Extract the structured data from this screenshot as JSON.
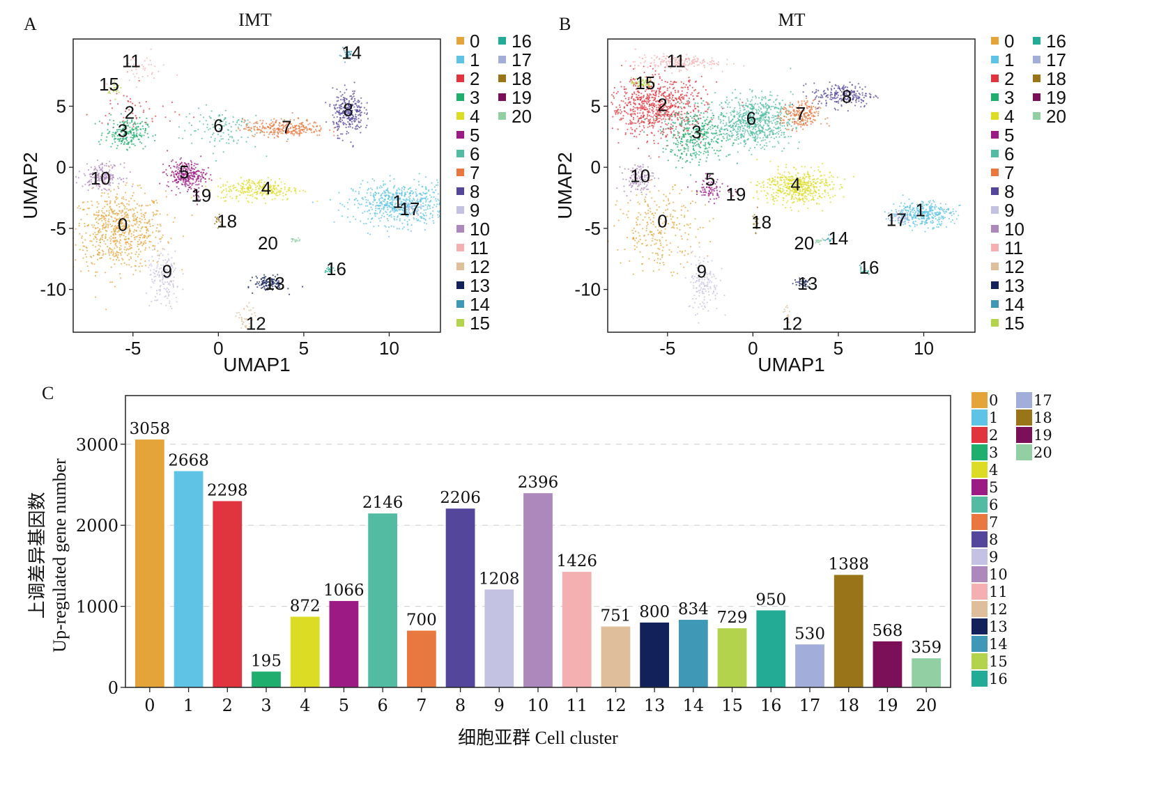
{
  "panels": {
    "a": {
      "letter": "A",
      "title": "IMT"
    },
    "b": {
      "letter": "B",
      "title": "MT"
    },
    "c": {
      "letter": "C"
    }
  },
  "cluster_colors": {
    "0": "#e4a43a",
    "1": "#5ec3e4",
    "2": "#e0343e",
    "3": "#1fae6e",
    "4": "#dcdc24",
    "5": "#9b1a84",
    "6": "#52bba1",
    "7": "#e8783f",
    "8": "#54469a",
    "9": "#c4c2e2",
    "10": "#ad88bd",
    "11": "#f4afb0",
    "12": "#dfbe9c",
    "13": "#13215a",
    "14": "#3f98b5",
    "15": "#b4d34c",
    "16": "#24ab96",
    "17": "#a2add9",
    "18": "#9a7419",
    "19": "#7b1058",
    "20": "#92cfa3"
  },
  "chart_data": [
    {
      "type": "scatter",
      "panel": "A",
      "title": "IMT",
      "xlabel": "UMAP1",
      "ylabel": "UMAP2",
      "xlim": [
        -8.5,
        13
      ],
      "ylim": [
        -13.5,
        10.5
      ],
      "xticks": [
        -5,
        0,
        5,
        10
      ],
      "yticks": [
        5,
        0,
        -5,
        -10
      ],
      "legend": {
        "placement": "right",
        "columns": 2,
        "entries": [
          "0",
          "1",
          "2",
          "3",
          "4",
          "5",
          "6",
          "7",
          "8",
          "9",
          "10",
          "11",
          "12",
          "13",
          "14",
          "15",
          "16",
          "17",
          "18",
          "19",
          "20"
        ]
      },
      "clusters": [
        {
          "id": "0",
          "label_at": [
            -5.6,
            -4.7
          ],
          "cx": -5.8,
          "cy": -5.2,
          "sx": 1.35,
          "sy": 1.6,
          "n": 700
        },
        {
          "id": "1",
          "label_at": [
            10.5,
            -2.8
          ],
          "cx": 10.6,
          "cy": -3.0,
          "sx": 1.35,
          "sy": 0.85,
          "n": 620
        },
        {
          "id": "2",
          "label_at": [
            -5.2,
            4.5
          ],
          "cx": -5.0,
          "cy": 4.5,
          "sx": 1.2,
          "sy": 1.0,
          "n": 50
        },
        {
          "id": "3",
          "label_at": [
            -5.6,
            3.0
          ],
          "cx": -5.4,
          "cy": 2.8,
          "sx": 0.6,
          "sy": 0.6,
          "n": 220
        },
        {
          "id": "4",
          "label_at": [
            2.8,
            -1.7
          ],
          "cx": 2.4,
          "cy": -1.8,
          "sx": 1.2,
          "sy": 0.45,
          "n": 260
        },
        {
          "id": "5",
          "label_at": [
            -2.0,
            -0.4
          ],
          "cx": -1.9,
          "cy": -0.6,
          "sx": 0.55,
          "sy": 0.55,
          "n": 280
        },
        {
          "id": "6",
          "label_at": [
            0,
            3.4
          ],
          "cx": 0.1,
          "cy": 3.2,
          "sx": 1.2,
          "sy": 0.9,
          "n": 120
        },
        {
          "id": "7",
          "label_at": [
            4.0,
            3.3
          ],
          "cx": 3.9,
          "cy": 3.2,
          "sx": 1.2,
          "sy": 0.35,
          "n": 280
        },
        {
          "id": "8",
          "label_at": [
            7.6,
            4.7
          ],
          "cx": 7.6,
          "cy": 4.5,
          "sx": 0.45,
          "sy": 0.9,
          "n": 280
        },
        {
          "id": "9",
          "label_at": [
            -3.0,
            -8.5
          ],
          "cx": -3.2,
          "cy": -9.2,
          "sx": 0.5,
          "sy": 1.2,
          "n": 160
        },
        {
          "id": "10",
          "label_at": [
            -6.9,
            -0.9
          ],
          "cx": -6.8,
          "cy": -0.7,
          "sx": 0.55,
          "sy": 0.5,
          "n": 180
        },
        {
          "id": "11",
          "label_at": [
            -5.1,
            8.7
          ],
          "cx": -4.6,
          "cy": 8.0,
          "sx": 0.8,
          "sy": 0.6,
          "n": 40
        },
        {
          "id": "12",
          "label_at": [
            2.2,
            -12.8
          ],
          "cx": 1.6,
          "cy": -12.5,
          "sx": 0.25,
          "sy": 0.7,
          "n": 40
        },
        {
          "id": "13",
          "label_at": [
            3.3,
            -9.5
          ],
          "cx": 3.0,
          "cy": -9.5,
          "sx": 0.45,
          "sy": 0.3,
          "n": 120
        },
        {
          "id": "14",
          "label_at": [
            7.8,
            9.4
          ],
          "cx": 7.5,
          "cy": 9.3,
          "sx": 0.2,
          "sy": 0.25,
          "n": 30
        },
        {
          "id": "15",
          "label_at": [
            -6.4,
            6.8
          ],
          "cx": -6.1,
          "cy": 6.3,
          "sx": 0.2,
          "sy": 0.3,
          "n": 20
        },
        {
          "id": "16",
          "label_at": [
            6.9,
            -8.3
          ],
          "cx": 6.5,
          "cy": -8.4,
          "sx": 0.12,
          "sy": 0.2,
          "n": 20
        },
        {
          "id": "17",
          "label_at": [
            11.2,
            -3.4
          ],
          "cx": 11.3,
          "cy": -3.4,
          "sx": 0.3,
          "sy": 0.3,
          "n": 30
        },
        {
          "id": "18",
          "label_at": [
            0.5,
            -4.4
          ],
          "cx": 0.0,
          "cy": -4.5,
          "sx": 0.15,
          "sy": 0.5,
          "n": 15
        },
        {
          "id": "19",
          "label_at": [
            -1.0,
            -2.3
          ],
          "cx": -1.4,
          "cy": -2.2,
          "sx": 0.15,
          "sy": 0.4,
          "n": 15
        },
        {
          "id": "20",
          "label_at": [
            2.9,
            -6.2
          ],
          "cx": 4.5,
          "cy": -6.0,
          "sx": 0.15,
          "sy": 0.12,
          "n": 15
        }
      ]
    },
    {
      "type": "scatter",
      "panel": "B",
      "title": "MT",
      "xlabel": "UMAP1",
      "ylabel": "UMAP2",
      "xlim": [
        -8.5,
        13
      ],
      "ylim": [
        -13.5,
        10.5
      ],
      "xticks": [
        -5,
        0,
        5,
        10
      ],
      "yticks": [
        5,
        0,
        -5,
        -10
      ],
      "legend": {
        "placement": "right",
        "columns": 2,
        "entries": [
          "0",
          "1",
          "2",
          "3",
          "4",
          "5",
          "6",
          "7",
          "8",
          "9",
          "10",
          "11",
          "12",
          "13",
          "14",
          "15",
          "16",
          "17",
          "18",
          "19",
          "20"
        ]
      },
      "clusters": [
        {
          "id": "0",
          "label_at": [
            -5.3,
            -4.4
          ],
          "cx": -5.4,
          "cy": -5.0,
          "sx": 1.2,
          "sy": 1.6,
          "n": 260
        },
        {
          "id": "1",
          "label_at": [
            9.8,
            -3.5
          ],
          "cx": 9.9,
          "cy": -3.8,
          "sx": 0.9,
          "sy": 0.5,
          "n": 360
        },
        {
          "id": "2",
          "label_at": [
            -5.3,
            5.1
          ],
          "cx": -5.6,
          "cy": 4.9,
          "sx": 1.4,
          "sy": 1.2,
          "n": 800
        },
        {
          "id": "3",
          "label_at": [
            -3.3,
            2.9
          ],
          "cx": -3.3,
          "cy": 2.6,
          "sx": 1.0,
          "sy": 1.1,
          "n": 380
        },
        {
          "id": "4",
          "label_at": [
            2.5,
            -1.4
          ],
          "cx": 2.6,
          "cy": -1.6,
          "sx": 1.0,
          "sy": 0.7,
          "n": 500
        },
        {
          "id": "5",
          "label_at": [
            -2.5,
            -1.0
          ],
          "cx": -2.6,
          "cy": -1.8,
          "sx": 0.4,
          "sy": 0.5,
          "n": 80
        },
        {
          "id": "6",
          "label_at": [
            -0.1,
            4.0
          ],
          "cx": 0.1,
          "cy": 3.8,
          "sx": 1.1,
          "sy": 1.0,
          "n": 700
        },
        {
          "id": "7",
          "label_at": [
            2.8,
            4.4
          ],
          "cx": 2.8,
          "cy": 4.2,
          "sx": 0.55,
          "sy": 0.6,
          "n": 220
        },
        {
          "id": "8",
          "label_at": [
            5.5,
            5.8
          ],
          "cx": 5.3,
          "cy": 5.9,
          "sx": 0.9,
          "sy": 0.5,
          "n": 220
        },
        {
          "id": "9",
          "label_at": [
            -3.0,
            -8.5
          ],
          "cx": -2.9,
          "cy": -9.5,
          "sx": 0.45,
          "sy": 1.2,
          "n": 140
        },
        {
          "id": "10",
          "label_at": [
            -6.6,
            -0.7
          ],
          "cx": -6.7,
          "cy": -0.9,
          "sx": 0.45,
          "sy": 0.6,
          "n": 120
        },
        {
          "id": "11",
          "label_at": [
            -4.5,
            8.7
          ],
          "cx": -4.5,
          "cy": 8.6,
          "sx": 1.2,
          "sy": 0.3,
          "n": 180
        },
        {
          "id": "12",
          "label_at": [
            2.3,
            -12.8
          ],
          "cx": 2.0,
          "cy": -12.0,
          "sx": 0.15,
          "sy": 0.6,
          "n": 15
        },
        {
          "id": "13",
          "label_at": [
            3.2,
            -9.5
          ],
          "cx": 2.9,
          "cy": -9.5,
          "sx": 0.25,
          "sy": 0.2,
          "n": 40
        },
        {
          "id": "14",
          "label_at": [
            5.0,
            -5.8
          ],
          "cx": 4.4,
          "cy": -5.9,
          "sx": 0.15,
          "sy": 0.1,
          "n": 15
        },
        {
          "id": "15",
          "label_at": [
            -6.3,
            6.9
          ],
          "cx": -6.5,
          "cy": 6.9,
          "sx": 0.3,
          "sy": 0.2,
          "n": 60
        },
        {
          "id": "16",
          "label_at": [
            6.8,
            -8.2
          ],
          "cx": 6.5,
          "cy": -8.4,
          "sx": 0.12,
          "sy": 0.2,
          "n": 20
        },
        {
          "id": "17",
          "label_at": [
            8.4,
            -4.3
          ],
          "cx": 8.6,
          "cy": -4.1,
          "sx": 0.3,
          "sy": 0.25,
          "n": 40
        },
        {
          "id": "18",
          "label_at": [
            0.5,
            -4.5
          ],
          "cx": 0.2,
          "cy": -4.4,
          "sx": 0.1,
          "sy": 0.5,
          "n": 15
        },
        {
          "id": "19",
          "label_at": [
            -1.0,
            -2.2
          ],
          "cx": -1.2,
          "cy": -2.0,
          "sx": 0.2,
          "sy": 0.3,
          "n": 10
        },
        {
          "id": "20",
          "label_at": [
            3.0,
            -6.2
          ],
          "cx": 3.9,
          "cy": -6.0,
          "sx": 0.15,
          "sy": 0.1,
          "n": 15
        }
      ]
    },
    {
      "type": "bar",
      "panel": "C",
      "title": "",
      "xlabel": "细胞亚群 Cell cluster",
      "ylabel_cn": "上调差异基因数",
      "ylabel_en": "Up-regulated gene number",
      "ylim": [
        0,
        3600
      ],
      "yticks": [
        0,
        1000,
        2000,
        3000
      ],
      "grid": "horizontal-dashed",
      "legend": {
        "placement": "right",
        "columns": 2,
        "entries": [
          "0",
          "1",
          "2",
          "3",
          "4",
          "5",
          "6",
          "7",
          "8",
          "9",
          "10",
          "11",
          "12",
          "13",
          "14",
          "15",
          "16",
          "17",
          "18",
          "19",
          "20"
        ]
      },
      "categories": [
        "0",
        "1",
        "2",
        "3",
        "4",
        "5",
        "6",
        "7",
        "8",
        "9",
        "10",
        "11",
        "12",
        "13",
        "14",
        "15",
        "16",
        "17",
        "18",
        "19",
        "20"
      ],
      "values": [
        3058,
        2668,
        2298,
        195,
        872,
        1066,
        2146,
        700,
        2206,
        1208,
        2396,
        1426,
        751,
        800,
        834,
        729,
        950,
        530,
        1388,
        568,
        359
      ],
      "data_labels": [
        "3058",
        "2668",
        "2298",
        "195",
        "872",
        "1066",
        "2146",
        "700",
        "2206",
        "1208",
        "2396",
        "1426",
        "751",
        "800",
        "834",
        "729",
        "950",
        "530",
        "1388",
        "568",
        "359"
      ]
    }
  ]
}
